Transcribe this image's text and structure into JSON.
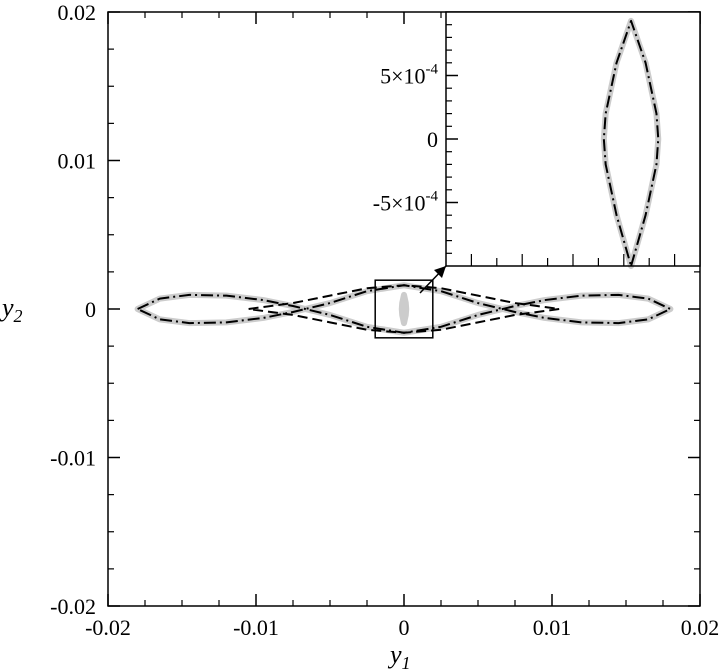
{
  "chart_data": [
    {
      "type": "line",
      "title": "",
      "xlabel": "y",
      "xlabel_sub": "1",
      "ylabel": "y",
      "ylabel_sub": "2",
      "xlim": [
        -0.02,
        0.02
      ],
      "ylim": [
        -0.02,
        0.02
      ],
      "x_tick_labels": [
        "-0.02",
        "-0.01",
        "0",
        "0.01",
        "0.02"
      ],
      "x_tick_values": [
        -0.02,
        -0.01,
        0,
        0.01,
        0.02
      ],
      "y_tick_labels": [
        "-0.02",
        "-0.01",
        "0",
        "0.01",
        "0.02"
      ],
      "y_tick_values": [
        -0.02,
        -0.01,
        0,
        0.01,
        0.02
      ],
      "grid": false,
      "legend": "none",
      "series": [
        {
          "style": "gray-solid-thick",
          "color": "#cccccc",
          "points": [
            [
              -0.018,
              0
            ],
            [
              -0.0165,
              0.0007
            ],
            [
              -0.0145,
              0.00095
            ],
            [
              -0.012,
              0.0009
            ],
            [
              -0.0095,
              0.0006
            ],
            [
              -0.0075,
              0.0002
            ],
            [
              -0.005,
              -0.0004
            ],
            [
              -0.0025,
              -0.0012
            ],
            [
              0,
              -0.0016
            ],
            [
              0.0025,
              -0.0012
            ],
            [
              0.005,
              -0.0004
            ],
            [
              0.0075,
              0.0002
            ],
            [
              0.0095,
              0.0006
            ],
            [
              0.012,
              0.0009
            ],
            [
              0.0145,
              0.00095
            ],
            [
              0.0165,
              0.0007
            ],
            [
              0.018,
              0
            ],
            [
              0.0165,
              -0.0007
            ],
            [
              0.0145,
              -0.00095
            ],
            [
              0.012,
              -0.0009
            ],
            [
              0.0095,
              -0.0006
            ],
            [
              0.0075,
              -0.0002
            ],
            [
              0.005,
              0.0004
            ],
            [
              0.0025,
              0.0012
            ],
            [
              0,
              0.0016
            ],
            [
              -0.0025,
              0.0012
            ],
            [
              -0.005,
              0.0004
            ],
            [
              -0.0075,
              -0.0002
            ],
            [
              -0.0095,
              -0.0006
            ],
            [
              -0.012,
              -0.0009
            ],
            [
              -0.0145,
              -0.00095
            ],
            [
              -0.0165,
              -0.0007
            ],
            [
              -0.018,
              0
            ]
          ]
        },
        {
          "style": "black-dash-dot",
          "color": "#000000",
          "points": [
            [
              -0.018,
              0
            ],
            [
              -0.0165,
              0.0007
            ],
            [
              -0.0145,
              0.00095
            ],
            [
              -0.012,
              0.0009
            ],
            [
              -0.0095,
              0.0006
            ],
            [
              -0.0075,
              0.0002
            ],
            [
              -0.005,
              -0.0004
            ],
            [
              -0.0025,
              -0.0012
            ],
            [
              0,
              -0.0016
            ],
            [
              0.0025,
              -0.0012
            ],
            [
              0.005,
              -0.0004
            ],
            [
              0.0075,
              0.0002
            ],
            [
              0.0095,
              0.0006
            ],
            [
              0.012,
              0.0009
            ],
            [
              0.0145,
              0.00095
            ],
            [
              0.0165,
              0.0007
            ],
            [
              0.018,
              0
            ],
            [
              0.0165,
              -0.0007
            ],
            [
              0.0145,
              -0.00095
            ],
            [
              0.012,
              -0.0009
            ],
            [
              0.0095,
              -0.0006
            ],
            [
              0.0075,
              -0.0002
            ],
            [
              0.005,
              0.0004
            ],
            [
              0.0025,
              0.0012
            ],
            [
              0,
              0.0016
            ],
            [
              -0.0025,
              0.0012
            ],
            [
              -0.005,
              0.0004
            ],
            [
              -0.0075,
              -0.0002
            ],
            [
              -0.0095,
              -0.0006
            ],
            [
              -0.012,
              -0.0009
            ],
            [
              -0.0145,
              -0.00095
            ],
            [
              -0.0165,
              -0.0007
            ],
            [
              -0.018,
              0
            ]
          ]
        },
        {
          "style": "black-dashed",
          "color": "#000000",
          "points": [
            [
              -0.0105,
              0
            ],
            [
              -0.0075,
              0.0004
            ],
            [
              -0.005,
              0.0009
            ],
            [
              -0.0025,
              0.0014
            ],
            [
              0,
              0.0016
            ],
            [
              0.0025,
              0.0014
            ],
            [
              0.005,
              0.0009
            ],
            [
              0.0075,
              0.0004
            ],
            [
              0.0105,
              0
            ],
            [
              0.0075,
              -0.0004
            ],
            [
              0.005,
              -0.0009
            ],
            [
              0.0025,
              -0.0014
            ],
            [
              0,
              -0.0016
            ],
            [
              -0.0025,
              -0.0014
            ],
            [
              -0.005,
              -0.0009
            ],
            [
              -0.0075,
              -0.0004
            ],
            [
              -0.0105,
              0
            ]
          ]
        },
        {
          "style": "gray-solid-thick",
          "color": "#cccccc",
          "points": [
            [
              0,
              -0.00095
            ],
            [
              0.00012,
              -0.0004
            ],
            [
              0.00015,
              0
            ],
            [
              0.00012,
              0.0004
            ],
            [
              0,
              0.00095
            ],
            [
              -0.00012,
              0.0004
            ],
            [
              -0.00015,
              0
            ],
            [
              -0.00012,
              -0.0004
            ],
            [
              0,
              -0.00095
            ]
          ]
        }
      ],
      "zoom_box": {
        "x": [
          -0.001,
          0.001
        ],
        "y": [
          -0.0012,
          0.0012
        ]
      }
    },
    {
      "type": "line",
      "title": "",
      "xlabel": "",
      "ylabel": "",
      "xlim": [
        -0.00035,
        0.00035
      ],
      "ylim": [
        -0.001,
        0.001
      ],
      "y_tick_labels": [
        {
          "base": "-5×10",
          "exp": "-4"
        },
        {
          "base": "0",
          "exp": ""
        },
        {
          "base": "5×10",
          "exp": "-4"
        }
      ],
      "y_tick_values": [
        -0.0005,
        0,
        0.0005
      ],
      "y_minor_tick_values": [
        -0.0009,
        -0.0008,
        -0.0007,
        -0.0006,
        -0.0004,
        -0.0003,
        -0.0002,
        -0.0001,
        0.0001,
        0.0002,
        0.0003,
        0.0004,
        0.0006,
        0.0007,
        0.0008,
        0.0009
      ],
      "x_tick_values": [
        -0.00028,
        -0.00021,
        -0.00014,
        -7e-05,
        0,
        7e-05,
        0.00014,
        0.00021,
        0.00028
      ],
      "grid": false,
      "legend": "none",
      "series": [
        {
          "style": "gray-solid-thick",
          "color": "#cccccc",
          "points": [
            [
              0.00016,
              -0.001
            ],
            [
              0.0002,
              -0.0006
            ],
            [
              0.00023,
              -0.0002
            ],
            [
              0.000235,
              0
            ],
            [
              0.00023,
              0.0002
            ],
            [
              0.0002,
              0.0006
            ],
            [
              0.00016,
              0.00093
            ],
            [
              0.00012,
              0.0006
            ],
            [
              9e-05,
              0.0002
            ],
            [
              8.5e-05,
              0
            ],
            [
              9e-05,
              -0.0002
            ],
            [
              0.00012,
              -0.0006
            ],
            [
              0.00016,
              -0.001
            ]
          ]
        },
        {
          "style": "black-dash-dot",
          "color": "#000000",
          "points": [
            [
              0.00016,
              -0.001
            ],
            [
              0.0002,
              -0.0006
            ],
            [
              0.00023,
              -0.0002
            ],
            [
              0.000235,
              0
            ],
            [
              0.00023,
              0.0002
            ],
            [
              0.0002,
              0.0006
            ],
            [
              0.00016,
              0.00093
            ],
            [
              0.00012,
              0.0006
            ],
            [
              9e-05,
              0.0002
            ],
            [
              8.5e-05,
              0
            ],
            [
              9e-05,
              -0.0002
            ],
            [
              0.00012,
              -0.0006
            ],
            [
              0.00016,
              -0.001
            ]
          ]
        }
      ]
    }
  ]
}
